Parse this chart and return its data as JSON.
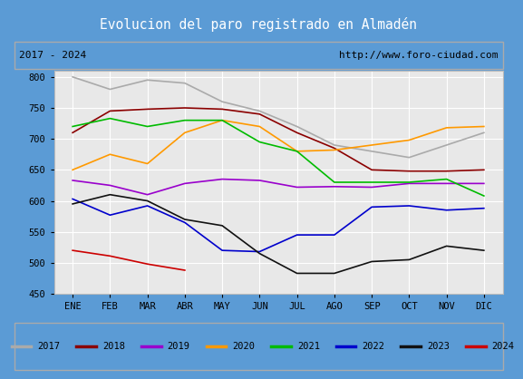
{
  "title": "Evolucion del paro registrado en Almadén",
  "subtitle_left": "2017 - 2024",
  "subtitle_right": "http://www.foro-ciudad.com",
  "title_bg_color": "#5b9bd5",
  "title_text_color": "white",
  "months": [
    "ENE",
    "FEB",
    "MAR",
    "ABR",
    "MAY",
    "JUN",
    "JUL",
    "AGO",
    "SEP",
    "OCT",
    "NOV",
    "DIC"
  ],
  "ylim": [
    450,
    810
  ],
  "yticks": [
    450,
    500,
    550,
    600,
    650,
    700,
    750,
    800
  ],
  "series": {
    "2017": {
      "color": "#aaaaaa",
      "values": [
        800,
        780,
        795,
        790,
        760,
        745,
        720,
        690,
        680,
        670,
        690,
        710
      ]
    },
    "2018": {
      "color": "#8b0000",
      "values": [
        710,
        745,
        748,
        750,
        748,
        740,
        710,
        685,
        650,
        648,
        648,
        650
      ]
    },
    "2019": {
      "color": "#9900cc",
      "values": [
        633,
        625,
        610,
        628,
        635,
        633,
        622,
        623,
        622,
        628,
        628,
        628
      ]
    },
    "2020": {
      "color": "#ff9900",
      "values": [
        650,
        675,
        660,
        710,
        730,
        720,
        680,
        682,
        690,
        698,
        718,
        720
      ]
    },
    "2021": {
      "color": "#00bb00",
      "values": [
        720,
        733,
        720,
        730,
        730,
        695,
        680,
        630,
        630,
        630,
        635,
        608
      ]
    },
    "2022": {
      "color": "#0000cc",
      "values": [
        603,
        577,
        592,
        565,
        520,
        518,
        545,
        545,
        590,
        592,
        585,
        588
      ]
    },
    "2023": {
      "color": "#111111",
      "values": [
        595,
        610,
        600,
        570,
        560,
        515,
        483,
        483,
        502,
        505,
        527,
        520
      ]
    },
    "2024": {
      "color": "#cc0000",
      "values": [
        520,
        511,
        498,
        488,
        null,
        null,
        null,
        null,
        null,
        null,
        null,
        null
      ]
    }
  },
  "legend_order": [
    "2017",
    "2018",
    "2019",
    "2020",
    "2021",
    "2022",
    "2023",
    "2024"
  ]
}
